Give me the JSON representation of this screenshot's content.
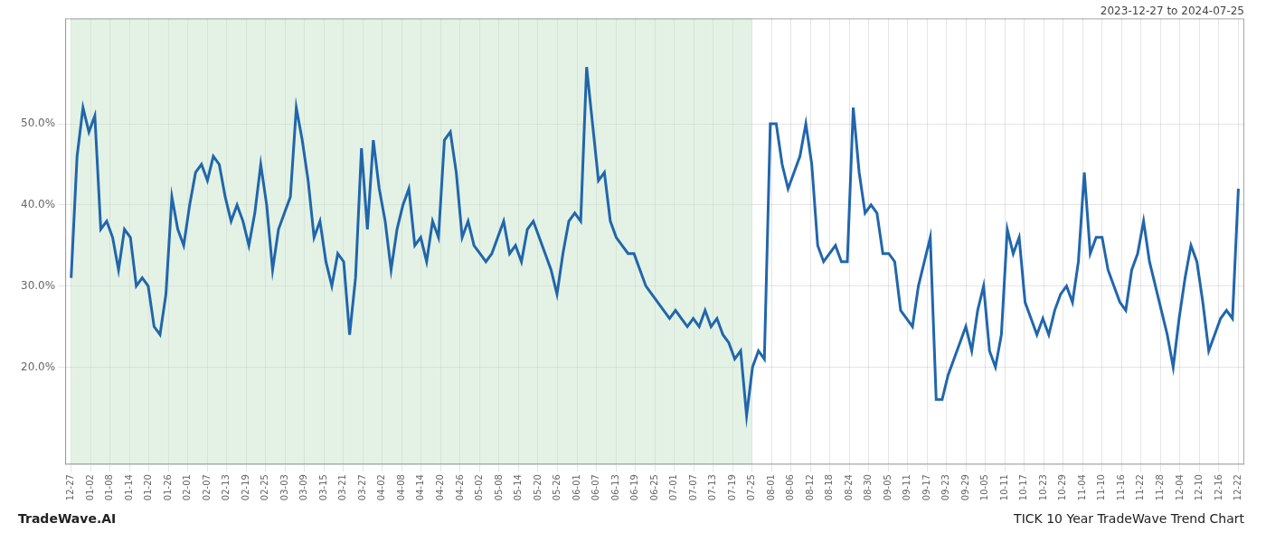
{
  "chart_data": {
    "type": "line",
    "title": "TICK 10 Year TradeWave Trend Chart",
    "subtitle": "2023-12-27 to 2024-07-25",
    "annotations": [
      "TradeWave.AI"
    ],
    "color": "#2166ac",
    "grid": true,
    "shaded_region": {
      "from": 0,
      "to": 114.9167,
      "color": "#c8e6c9"
    },
    "xlim": [
      -1,
      198
    ],
    "xticks": [
      {
        "value": 0,
        "label": "12-27"
      },
      {
        "value": 3.2833,
        "label": "01-02"
      },
      {
        "value": 6.5667,
        "label": "01-08"
      },
      {
        "value": 9.85,
        "label": "01-14"
      },
      {
        "value": 13.1333,
        "label": "01-20"
      },
      {
        "value": 16.4167,
        "label": "01-26"
      },
      {
        "value": 19.7,
        "label": "02-01"
      },
      {
        "value": 22.9833,
        "label": "02-07"
      },
      {
        "value": 26.2667,
        "label": "02-13"
      },
      {
        "value": 29.55,
        "label": "02-19"
      },
      {
        "value": 32.8333,
        "label": "02-25"
      },
      {
        "value": 36.1167,
        "label": "03-03"
      },
      {
        "value": 39.4,
        "label": "03-09"
      },
      {
        "value": 42.6833,
        "label": "03-15"
      },
      {
        "value": 45.9667,
        "label": "03-21"
      },
      {
        "value": 49.25,
        "label": "03-27"
      },
      {
        "value": 52.5333,
        "label": "04-02"
      },
      {
        "value": 55.8167,
        "label": "04-08"
      },
      {
        "value": 59.1,
        "label": "04-14"
      },
      {
        "value": 62.3833,
        "label": "04-20"
      },
      {
        "value": 65.6667,
        "label": "04-26"
      },
      {
        "value": 68.95,
        "label": "05-02"
      },
      {
        "value": 72.2333,
        "label": "05-08"
      },
      {
        "value": 75.5167,
        "label": "05-14"
      },
      {
        "value": 78.8,
        "label": "05-20"
      },
      {
        "value": 82.0833,
        "label": "05-26"
      },
      {
        "value": 85.3667,
        "label": "06-01"
      },
      {
        "value": 88.65,
        "label": "06-07"
      },
      {
        "value": 91.9333,
        "label": "06-13"
      },
      {
        "value": 95.2167,
        "label": "06-19"
      },
      {
        "value": 98.5,
        "label": "06-25"
      },
      {
        "value": 101.7833,
        "label": "07-01"
      },
      {
        "value": 105.0667,
        "label": "07-07"
      },
      {
        "value": 108.35,
        "label": "07-13"
      },
      {
        "value": 111.6333,
        "label": "07-19"
      },
      {
        "value": 114.9167,
        "label": "07-25"
      },
      {
        "value": 118.2,
        "label": "08-01"
      },
      {
        "value": 121.4833,
        "label": "08-06"
      },
      {
        "value": 124.7667,
        "label": "08-12"
      },
      {
        "value": 128.05,
        "label": "08-18"
      },
      {
        "value": 131.3333,
        "label": "08-24"
      },
      {
        "value": 134.6167,
        "label": "08-30"
      },
      {
        "value": 137.9,
        "label": "09-05"
      },
      {
        "value": 141.1833,
        "label": "09-11"
      },
      {
        "value": 144.4667,
        "label": "09-17"
      },
      {
        "value": 147.75,
        "label": "09-23"
      },
      {
        "value": 151.0333,
        "label": "09-29"
      },
      {
        "value": 154.3167,
        "label": "10-05"
      },
      {
        "value": 157.6,
        "label": "10-11"
      },
      {
        "value": 160.8833,
        "label": "10-17"
      },
      {
        "value": 164.1667,
        "label": "10-23"
      },
      {
        "value": 167.45,
        "label": "10-29"
      },
      {
        "value": 170.7333,
        "label": "11-04"
      },
      {
        "value": 174.0167,
        "label": "11-10"
      },
      {
        "value": 177.3,
        "label": "11-16"
      },
      {
        "value": 180.5833,
        "label": "11-22"
      },
      {
        "value": 183.8667,
        "label": "11-28"
      },
      {
        "value": 187.15,
        "label": "12-04"
      },
      {
        "value": 190.4333,
        "label": "12-10"
      },
      {
        "value": 193.7167,
        "label": "12-16"
      },
      {
        "value": 197,
        "label": "12-22"
      }
    ],
    "ylim": [
      0.08,
      0.63
    ],
    "yticks": [
      {
        "value": 0.2,
        "label": "20.0%"
      },
      {
        "value": 0.3,
        "label": "30.0%"
      },
      {
        "value": 0.4,
        "label": "40.0%"
      },
      {
        "value": 0.5,
        "label": "50.0%"
      }
    ],
    "x": [
      0,
      1,
      2,
      3,
      4,
      5,
      6,
      7,
      8,
      9,
      10,
      11,
      12,
      13,
      14,
      15,
      16,
      17,
      18,
      19,
      20,
      21,
      22,
      23,
      24,
      25,
      26,
      27,
      28,
      29,
      30,
      31,
      32,
      33,
      34,
      35,
      36,
      37,
      38,
      39,
      40,
      41,
      42,
      43,
      44,
      45,
      46,
      47,
      48,
      49,
      50,
      51,
      52,
      53,
      54,
      55,
      56,
      57,
      58,
      59,
      60,
      61,
      62,
      63,
      64,
      65,
      66,
      67,
      68,
      69,
      70,
      71,
      72,
      73,
      74,
      75,
      76,
      77,
      78,
      79,
      80,
      81,
      82,
      83,
      84,
      85,
      86,
      87,
      88,
      89,
      90,
      91,
      92,
      93,
      94,
      95,
      96,
      97,
      98,
      99,
      100,
      101,
      102,
      103,
      104,
      105,
      106,
      107,
      108,
      109,
      110,
      111,
      112,
      113,
      114,
      115,
      116,
      117,
      118,
      119,
      120,
      121,
      122,
      123,
      124,
      125,
      126,
      127,
      128,
      129,
      130,
      131,
      132,
      133,
      134,
      135,
      136,
      137,
      138,
      139,
      140,
      141,
      142,
      143,
      144,
      145,
      146,
      147,
      148,
      149,
      150,
      151,
      152,
      153,
      154,
      155,
      156,
      157,
      158,
      159,
      160,
      161,
      162,
      163,
      164,
      165,
      166,
      167,
      168,
      169,
      170,
      171,
      172,
      173,
      174,
      175,
      176,
      177,
      178,
      179,
      180,
      181,
      182,
      183,
      184,
      185,
      186,
      187,
      188,
      189,
      190,
      191,
      192,
      193,
      194,
      195,
      196,
      197
    ],
    "values": [
      0.31,
      0.46,
      0.52,
      0.49,
      0.51,
      0.37,
      0.38,
      0.36,
      0.32,
      0.37,
      0.36,
      0.3,
      0.31,
      0.3,
      0.25,
      0.24,
      0.29,
      0.41,
      0.37,
      0.35,
      0.4,
      0.44,
      0.45,
      0.43,
      0.46,
      0.45,
      0.41,
      0.38,
      0.4,
      0.38,
      0.35,
      0.39,
      0.45,
      0.4,
      0.32,
      0.37,
      0.39,
      0.41,
      0.52,
      0.48,
      0.43,
      0.36,
      0.38,
      0.33,
      0.3,
      0.34,
      0.33,
      0.24,
      0.31,
      0.47,
      0.37,
      0.48,
      0.42,
      0.38,
      0.32,
      0.37,
      0.4,
      0.42,
      0.35,
      0.36,
      0.33,
      0.38,
      0.36,
      0.48,
      0.49,
      0.44,
      0.36,
      0.38,
      0.35,
      0.34,
      0.33,
      0.34,
      0.36,
      0.38,
      0.34,
      0.35,
      0.33,
      0.37,
      0.38,
      0.36,
      0.34,
      0.32,
      0.29,
      0.34,
      0.38,
      0.39,
      0.38,
      0.57,
      0.5,
      0.43,
      0.44,
      0.38,
      0.36,
      0.35,
      0.34,
      0.34,
      0.32,
      0.3,
      0.29,
      0.28,
      0.27,
      0.26,
      0.27,
      0.26,
      0.25,
      0.26,
      0.25,
      0.27,
      0.25,
      0.26,
      0.24,
      0.23,
      0.21,
      0.22,
      0.14,
      0.2,
      0.22,
      0.21,
      0.5,
      0.5,
      0.45,
      0.42,
      0.44,
      0.46,
      0.5,
      0.45,
      0.35,
      0.33,
      0.34,
      0.35,
      0.33,
      0.33,
      0.52,
      0.44,
      0.39,
      0.4,
      0.39,
      0.34,
      0.34,
      0.33,
      0.27,
      0.26,
      0.25,
      0.3,
      0.33,
      0.36,
      0.16,
      0.16,
      0.19,
      0.21,
      0.23,
      0.25,
      0.22,
      0.27,
      0.3,
      0.22,
      0.2,
      0.24,
      0.37,
      0.34,
      0.36,
      0.28,
      0.26,
      0.24,
      0.26,
      0.24,
      0.27,
      0.29,
      0.3,
      0.28,
      0.33,
      0.44,
      0.34,
      0.36,
      0.36,
      0.32,
      0.3,
      0.28,
      0.27,
      0.32,
      0.34,
      0.38,
      0.33,
      0.3,
      0.27,
      0.24,
      0.2,
      0.26,
      0.31,
      0.35,
      0.33,
      0.28,
      0.22,
      0.24,
      0.26,
      0.27,
      0.26,
      0.42
    ]
  }
}
